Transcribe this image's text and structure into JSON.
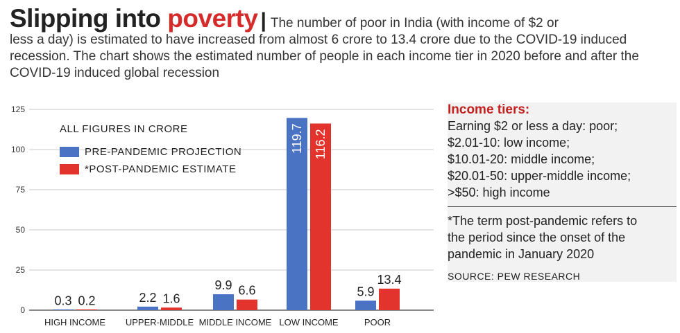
{
  "header": {
    "title_main": "Slipping into ",
    "title_accent": "poverty",
    "separator": "|",
    "standfirst_first": "The number of poor in India (with income of $2 or",
    "standfirst_rest": "less a day) is estimated to have increased from almost 6 crore to 13.4 crore due to the COVID-19 induced recession. The chart shows the estimated number of people in each income tier in 2020 before and after the COVID-19 induced global recession"
  },
  "colors": {
    "accent": "#d62b2b",
    "pre_pandemic": "#4a73c4",
    "post_pandemic": "#e2332c",
    "sidebar_bg": "#f2f2f2"
  },
  "chart_data": {
    "type": "bar",
    "annotation": "ALL FIGURES IN CRORE",
    "categories": [
      "HIGH INCOME",
      "UPPER-MIDDLE",
      "MIDDLE INCOME",
      "LOW INCOME",
      "POOR"
    ],
    "series": [
      {
        "name": "PRE-PANDEMIC PROJECTION",
        "values": [
          0.3,
          2.2,
          9.9,
          119.7,
          5.9
        ],
        "labels": [
          "0.3",
          "2.2",
          "9.9",
          "119.7",
          "5.9"
        ]
      },
      {
        "name": "*POST-PANDEMIC ESTIMATE",
        "values": [
          0.2,
          1.6,
          6.6,
          116.2,
          13.4
        ],
        "labels": [
          "0.2",
          "1.6",
          "6.6",
          "116.2",
          "13.4"
        ]
      }
    ],
    "yticks": [
      "0",
      "25",
      "50",
      "75",
      "100",
      "125"
    ],
    "ylim": [
      0,
      125
    ],
    "grid": true,
    "legend_position": "top-left"
  },
  "sidebar": {
    "title": "Income tiers:",
    "tiers": [
      "Earning $2 or less a day: poor;",
      "$2.01-10: low income;",
      "$10.01-20: middle income;",
      "$20.01-50: upper-middle income;",
      ">$50: high income"
    ],
    "note": "*The term post-pandemic refers to the period since the onset of the pandemic in January 2020",
    "source": "SOURCE: PEW RESEARCH"
  }
}
